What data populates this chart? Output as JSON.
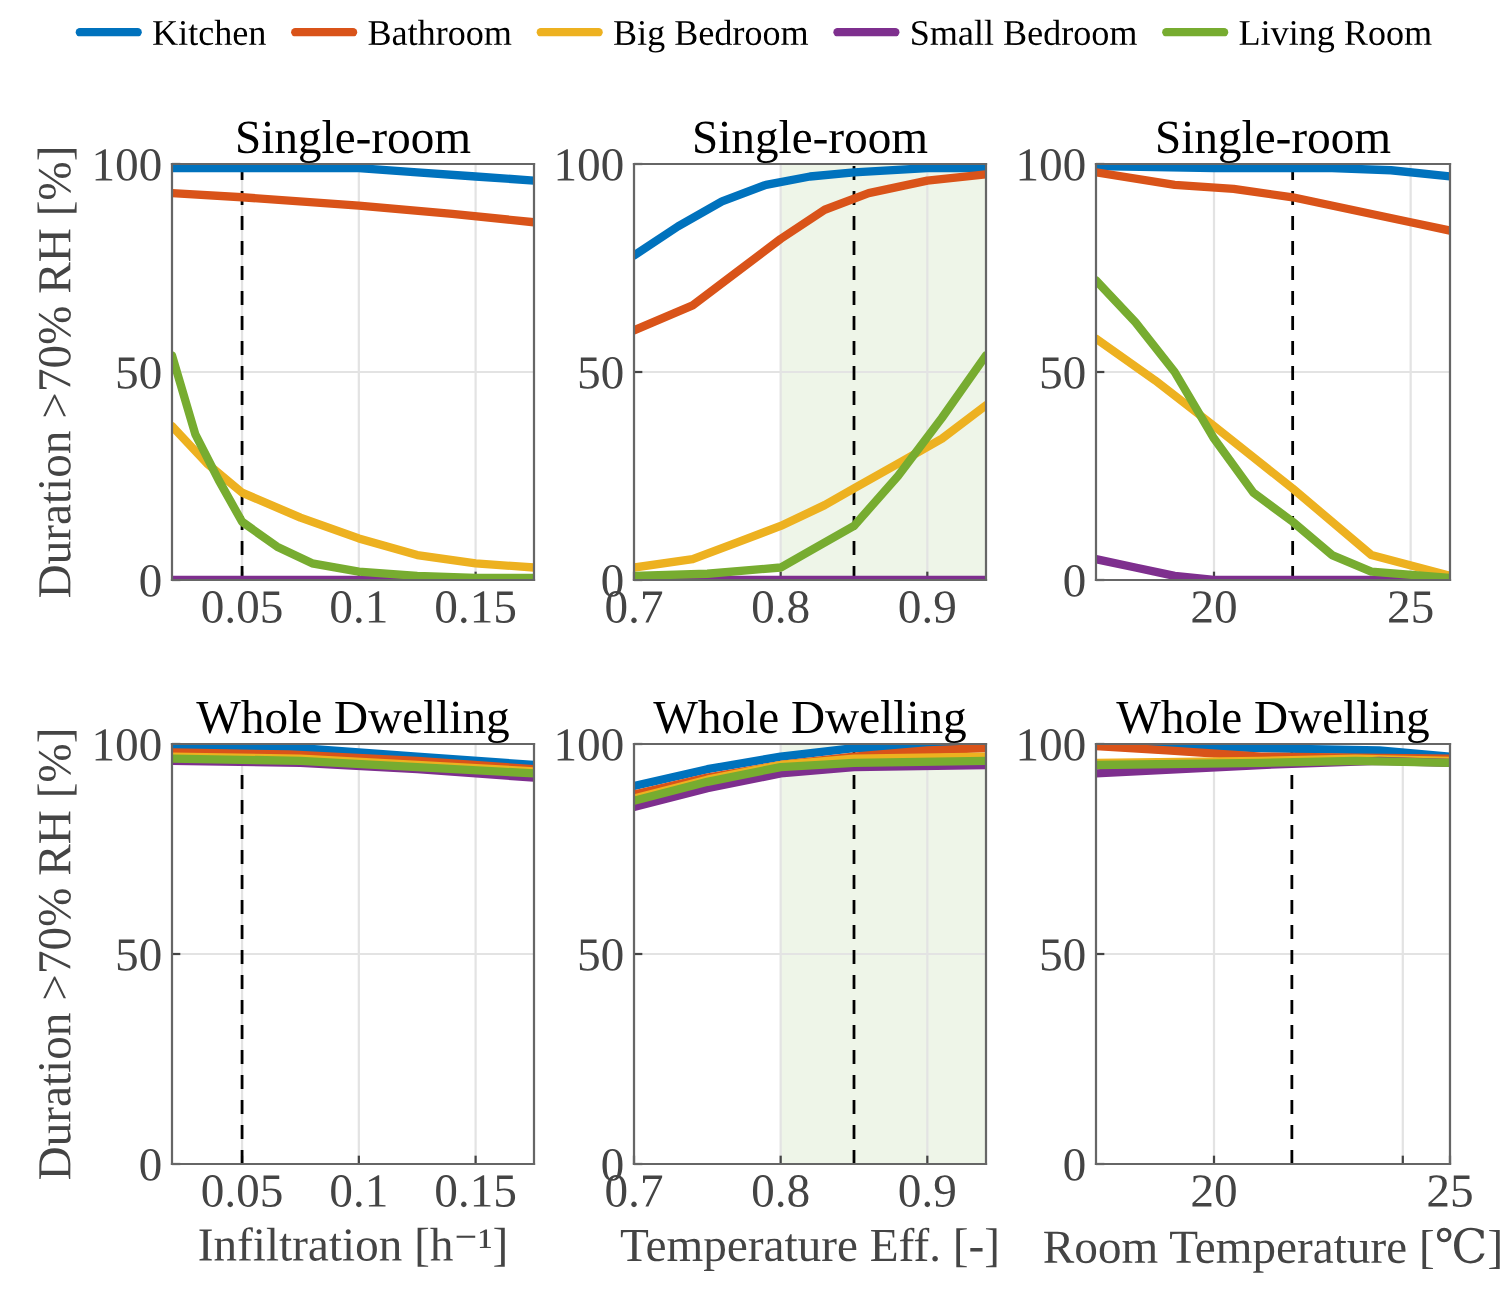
{
  "chart_data": [
    {
      "type": "line",
      "title": "Single-room",
      "ylabel": "Duration >70% RH [%]",
      "xlim": [
        0.02,
        0.175
      ],
      "xticks": [
        0.05,
        0.1,
        0.15
      ],
      "ylim": [
        0,
        100
      ],
      "yticks": [
        0,
        50,
        100
      ],
      "grid": true,
      "legend": "top",
      "ref_lines": [
        {
          "axis": "x",
          "value": 0.05,
          "color": "#000000",
          "line_style": "dashed"
        }
      ],
      "series": [
        {
          "name": "Kitchen",
          "color": "#0072bd",
          "x": [
            0.02,
            0.05,
            0.1,
            0.125,
            0.15,
            0.175
          ],
          "values": [
            99,
            99,
            99,
            98,
            97,
            96
          ]
        },
        {
          "name": "Bathroom",
          "color": "#d95319",
          "x": [
            0.02,
            0.05,
            0.1,
            0.14,
            0.175
          ],
          "values": [
            93,
            92,
            90,
            88,
            86
          ]
        },
        {
          "name": "Big Bedroom",
          "color": "#edb120",
          "x": [
            0.02,
            0.035,
            0.05,
            0.075,
            0.1,
            0.125,
            0.15,
            0.175
          ],
          "values": [
            37,
            28,
            21,
            15,
            10,
            6,
            4,
            3
          ]
        },
        {
          "name": "Small Bedroom",
          "color": "#7e2f8e",
          "x": [
            0.02,
            0.175
          ],
          "values": [
            0,
            0
          ]
        },
        {
          "name": "Living Room",
          "color": "#77ac30",
          "x": [
            0.02,
            0.03,
            0.04,
            0.05,
            0.065,
            0.08,
            0.1,
            0.125,
            0.15,
            0.175
          ],
          "values": [
            54,
            35,
            24,
            14,
            8,
            4,
            2,
            1,
            0.5,
            0.5
          ]
        }
      ]
    },
    {
      "type": "line",
      "title": "Single-room",
      "xlim": [
        0.7,
        0.94
      ],
      "xticks": [
        0.7,
        0.8,
        0.9
      ],
      "ylim": [
        0,
        100
      ],
      "yticks": [
        0,
        50,
        100
      ],
      "grid": true,
      "ref_lines": [
        {
          "axis": "x",
          "value": 0.85,
          "color": "#000000",
          "line_style": "dashed"
        }
      ],
      "bands": [
        {
          "axis": "x",
          "from": 0.8,
          "to": 0.94,
          "color": "#eef5e8"
        }
      ],
      "series": [
        {
          "color": "#0072bd",
          "x": [
            0.7,
            0.73,
            0.76,
            0.79,
            0.82,
            0.85,
            0.9,
            0.94
          ],
          "values": [
            78,
            85,
            91,
            95,
            97,
            98,
            99,
            99
          ]
        },
        {
          "color": "#d95319",
          "x": [
            0.7,
            0.74,
            0.77,
            0.8,
            0.83,
            0.86,
            0.9,
            0.94
          ],
          "values": [
            60,
            66,
            74,
            82,
            89,
            93,
            96,
            97.5
          ]
        },
        {
          "color": "#edb120",
          "x": [
            0.7,
            0.74,
            0.77,
            0.8,
            0.83,
            0.85,
            0.88,
            0.91,
            0.94
          ],
          "values": [
            3,
            5,
            9,
            13,
            18,
            22,
            28,
            34,
            42
          ]
        },
        {
          "color": "#7e2f8e",
          "x": [
            0.7,
            0.94
          ],
          "values": [
            0,
            0
          ]
        },
        {
          "color": "#77ac30",
          "x": [
            0.7,
            0.75,
            0.8,
            0.82,
            0.85,
            0.88,
            0.91,
            0.94
          ],
          "values": [
            1,
            1.5,
            3,
            7,
            13,
            25,
            39,
            54
          ]
        }
      ]
    },
    {
      "type": "line",
      "title": "Single-room",
      "xlim": [
        17,
        26
      ],
      "xticks": [
        20,
        25
      ],
      "ylim": [
        0,
        100
      ],
      "yticks": [
        0,
        50,
        100
      ],
      "grid": true,
      "ref_lines": [
        {
          "axis": "x",
          "value": 22,
          "color": "#000000",
          "line_style": "dashed"
        }
      ],
      "series": [
        {
          "color": "#0072bd",
          "x": [
            17,
            20,
            23,
            24.5,
            26
          ],
          "values": [
            99.5,
            99,
            99,
            98.5,
            97
          ]
        },
        {
          "color": "#d95319",
          "x": [
            17,
            19,
            20.5,
            22,
            23.5,
            25,
            26
          ],
          "values": [
            98,
            95,
            94,
            92,
            89,
            86,
            84
          ]
        },
        {
          "color": "#edb120",
          "x": [
            17,
            18.5,
            20,
            22,
            24,
            26
          ],
          "values": [
            58,
            48,
            37,
            22,
            6,
            1
          ]
        },
        {
          "color": "#7e2f8e",
          "x": [
            17,
            18,
            19,
            20,
            26
          ],
          "values": [
            5,
            3,
            1,
            0,
            0
          ]
        },
        {
          "color": "#77ac30",
          "x": [
            17,
            18,
            19,
            20,
            21,
            22,
            23,
            24,
            26
          ],
          "values": [
            72,
            62,
            50,
            34,
            21,
            14,
            6,
            2,
            0.5
          ]
        }
      ]
    },
    {
      "type": "line",
      "title": "Whole Dwelling",
      "xlabel": "Infiltration [h⁻¹]",
      "ylabel": "Duration >70% RH [%]",
      "xlim": [
        0.02,
        0.175
      ],
      "xticks": [
        0.05,
        0.1,
        0.15
      ],
      "ylim": [
        0,
        100
      ],
      "yticks": [
        0,
        50,
        100
      ],
      "grid": true,
      "ref_lines": [
        {
          "axis": "x",
          "value": 0.05,
          "color": "#000000",
          "line_style": "dashed"
        }
      ],
      "series": [
        {
          "color": "#0072bd",
          "x": [
            0.02,
            0.075,
            0.125,
            0.175
          ],
          "values": [
            99.5,
            99,
            97,
            95
          ]
        },
        {
          "color": "#d95319",
          "x": [
            0.02,
            0.07,
            0.125,
            0.175
          ],
          "values": [
            98,
            97.5,
            96,
            94
          ]
        },
        {
          "color": "#edb120",
          "x": [
            0.02,
            0.075,
            0.125,
            0.175
          ],
          "values": [
            97,
            96.5,
            95,
            93.5
          ]
        },
        {
          "color": "#7e2f8e",
          "x": [
            0.02,
            0.075,
            0.125,
            0.175
          ],
          "values": [
            96,
            95.5,
            94,
            92
          ]
        },
        {
          "color": "#77ac30",
          "x": [
            0.02,
            0.075,
            0.125,
            0.175
          ],
          "values": [
            96.5,
            96,
            94.5,
            93
          ]
        }
      ]
    },
    {
      "type": "line",
      "title": "Whole Dwelling",
      "xlabel": "Temperature Eff. [-]",
      "xlim": [
        0.7,
        0.94
      ],
      "xticks": [
        0.7,
        0.8,
        0.9
      ],
      "ylim": [
        0,
        100
      ],
      "yticks": [
        0,
        50,
        100
      ],
      "grid": true,
      "ref_lines": [
        {
          "axis": "x",
          "value": 0.85,
          "color": "#000000",
          "line_style": "dashed"
        }
      ],
      "bands": [
        {
          "axis": "x",
          "from": 0.8,
          "to": 0.94,
          "color": "#eef5e8"
        }
      ],
      "series": [
        {
          "color": "#0072bd",
          "x": [
            0.7,
            0.75,
            0.8,
            0.85,
            0.94
          ],
          "values": [
            90,
            94,
            97,
            99,
            99.5
          ]
        },
        {
          "color": "#d95319",
          "x": [
            0.7,
            0.75,
            0.8,
            0.85,
            0.9,
            0.94
          ],
          "values": [
            88,
            92,
            95,
            97,
            98.5,
            99
          ]
        },
        {
          "color": "#edb120",
          "x": [
            0.7,
            0.75,
            0.8,
            0.85,
            0.94
          ],
          "values": [
            87,
            91.5,
            95,
            96.5,
            97
          ]
        },
        {
          "color": "#7e2f8e",
          "x": [
            0.7,
            0.75,
            0.8,
            0.85,
            0.94
          ],
          "values": [
            85,
            89.5,
            93,
            94.5,
            95
          ]
        },
        {
          "color": "#77ac30",
          "x": [
            0.7,
            0.75,
            0.8,
            0.85,
            0.94
          ],
          "values": [
            86.5,
            91,
            94.5,
            95.5,
            96
          ]
        }
      ]
    },
    {
      "type": "line",
      "title": "Whole Dwelling",
      "xlabel": "Room Temperature [℃]",
      "xlim": [
        17.5,
        25
      ],
      "xticks": [
        20,
        {
          "value": 24,
          "label": null
        },
        25
      ],
      "ylim": [
        0,
        100
      ],
      "yticks": [
        0,
        50,
        100
      ],
      "grid": true,
      "ref_lines": [
        {
          "axis": "x",
          "value": 21.65,
          "color": "#000000",
          "line_style": "dashed"
        }
      ],
      "series": [
        {
          "color": "#0072bd",
          "x": [
            17.5,
            21,
            23.5,
            25
          ],
          "values": [
            100,
            99,
            98.5,
            97
          ]
        },
        {
          "color": "#d95319",
          "x": [
            17.5,
            19,
            21,
            25
          ],
          "values": [
            99.5,
            98.5,
            97,
            96.5
          ]
        },
        {
          "color": "#edb120",
          "x": [
            17.5,
            21,
            23,
            25
          ],
          "values": [
            95.5,
            96,
            96.5,
            96
          ]
        },
        {
          "color": "#7e2f8e",
          "x": [
            17.5,
            21,
            23.5,
            25
          ],
          "values": [
            93,
            95,
            96,
            95.5
          ]
        },
        {
          "color": "#77ac30",
          "x": [
            17.5,
            21,
            23,
            25
          ],
          "values": [
            95,
            95.5,
            96,
            95.5
          ]
        }
      ]
    }
  ]
}
